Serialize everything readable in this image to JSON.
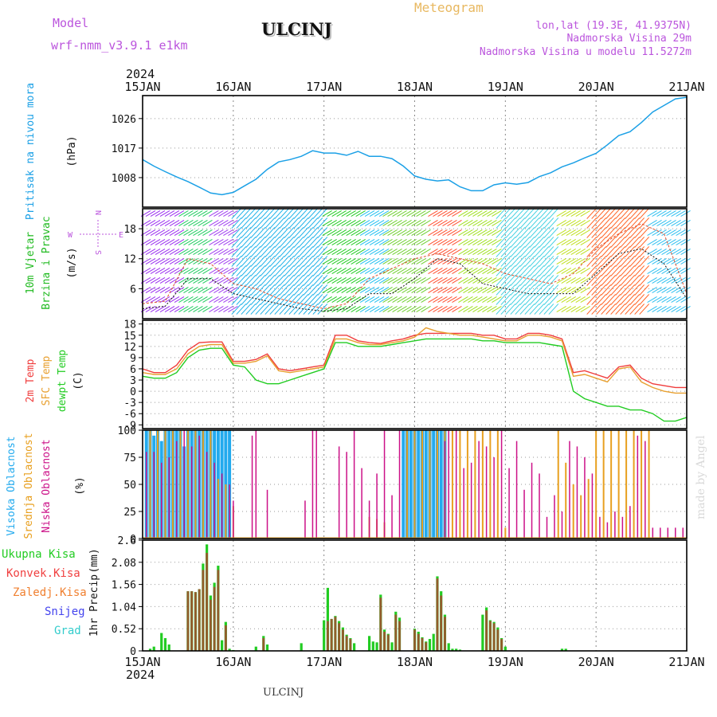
{
  "header": {
    "model_label": "Model",
    "model_name": "wrf-nmm_v3.9.1 e1km",
    "station": "ULCINJ",
    "product": "Meteogram",
    "coords": "lon,lat (19.3E, 41.9375N)",
    "elevation": "Nadmorska Visina 29m",
    "model_elevation": "Nadmorska Visina u modelu 11.5272m",
    "year": "2024",
    "footer_station": "ULCINJ",
    "watermark": "made by Angel"
  },
  "colors": {
    "pressure": "#1ba0e6",
    "wind_label": "#22bb22",
    "temp2m": "#f03c3c",
    "sfc_temp": "#e8a030",
    "dewpt": "#22cc22",
    "high_cloud": "#22aaee",
    "mid_cloud": "#e8a020",
    "low_cloud": "#cc1188",
    "total_precip": "#22cc22",
    "conv_precip": "#f04040",
    "strat_precip": "#f08030",
    "snow": "#4444ee",
    "hail": "#33cccc",
    "model_text": "#bb55dd",
    "product_text": "#e8b860"
  },
  "chart_data": [
    {
      "type": "line",
      "name": "pressure",
      "ylabel_lines": [
        "Pritisak na nivou mora",
        "(hPa)"
      ],
      "yticks": [
        1008,
        1017,
        1026
      ],
      "ylim": [
        999,
        1033
      ],
      "xlim_hours": [
        0,
        144
      ],
      "day_labels": [
        "15JAN",
        "16JAN",
        "17JAN",
        "18JAN",
        "19JAN",
        "20JAN",
        "21JAN"
      ],
      "grid": true,
      "x": [
        0,
        3,
        6,
        9,
        12,
        15,
        18,
        21,
        24,
        27,
        30,
        33,
        36,
        39,
        42,
        45,
        48,
        51,
        54,
        57,
        60,
        63,
        66,
        69,
        72,
        75,
        78,
        81,
        84,
        87,
        90,
        93,
        96,
        99,
        102,
        105,
        108,
        111,
        114,
        117,
        120,
        123,
        126,
        129,
        132,
        135,
        138,
        141,
        144
      ],
      "values": [
        1013.5,
        1011.5,
        1009.8,
        1008.2,
        1006.8,
        1005.1,
        1003.3,
        1002.8,
        1003.5,
        1005.5,
        1007.5,
        1010.5,
        1012.8,
        1013.5,
        1014.5,
        1016.2,
        1015.5,
        1015.5,
        1014.8,
        1016,
        1014.5,
        1014.5,
        1013.8,
        1011.5,
        1008.5,
        1007.5,
        1007,
        1007.3,
        1005.2,
        1004,
        1004,
        1005.8,
        1006.4,
        1006,
        1006.5,
        1008.3,
        1009.5,
        1011.3,
        1012.5,
        1014,
        1015.4,
        1018,
        1020.8,
        1022,
        1024.8,
        1028,
        1030,
        1032,
        1032.5
      ]
    },
    {
      "type": "line",
      "name": "wind_speed",
      "ylabel_lines": [
        "10m Vjetar",
        "Brzina i Pravac",
        "(m/s)"
      ],
      "compass": {
        "north": "N",
        "west": "W",
        "east": "E",
        "south": "S"
      },
      "yticks": [
        6,
        12,
        18
      ],
      "ylim": [
        0,
        22
      ],
      "grid": true,
      "direction_bands": [
        {
          "from_h": 0,
          "to_h": 10,
          "color": "#9a30f0"
        },
        {
          "from_h": 10,
          "to_h": 18,
          "color": "#20cc60"
        },
        {
          "from_h": 18,
          "to_h": 24,
          "color": "#a040f0"
        },
        {
          "from_h": 24,
          "to_h": 48,
          "color": "#1ab0e8"
        },
        {
          "from_h": 48,
          "to_h": 58,
          "color": "#22cc22"
        },
        {
          "from_h": 58,
          "to_h": 64,
          "color": "#22c0f0"
        },
        {
          "from_h": 64,
          "to_h": 76,
          "color": "#70d030"
        },
        {
          "from_h": 76,
          "to_h": 84,
          "color": "#ff5030"
        },
        {
          "from_h": 84,
          "to_h": 94,
          "color": "#a0e020"
        },
        {
          "from_h": 94,
          "to_h": 110,
          "color": "#40d0e0"
        },
        {
          "from_h": 110,
          "to_h": 118,
          "color": "#c0e020"
        },
        {
          "from_h": 118,
          "to_h": 134,
          "color": "#ff6020"
        },
        {
          "from_h": 134,
          "to_h": 144,
          "color": "#30c0f0"
        }
      ],
      "series": [
        {
          "name": "gust",
          "x": [
            0,
            6,
            12,
            18,
            24,
            30,
            36,
            42,
            48,
            54,
            60,
            66,
            72,
            78,
            84,
            90,
            96,
            102,
            108,
            114,
            120,
            126,
            132,
            138,
            144
          ],
          "values": [
            3,
            3.5,
            12,
            11,
            7,
            6,
            4,
            3,
            2,
            3,
            8,
            10,
            12,
            13,
            12,
            11,
            9,
            8,
            7,
            9,
            14,
            17,
            19,
            17,
            5
          ]
        },
        {
          "name": "mean",
          "x": [
            0,
            6,
            12,
            18,
            24,
            30,
            36,
            42,
            48,
            54,
            60,
            66,
            72,
            78,
            84,
            90,
            96,
            102,
            108,
            114,
            120,
            126,
            132,
            138,
            144
          ],
          "values": [
            2,
            2.5,
            8,
            8,
            5,
            4,
            3,
            2,
            1.5,
            2,
            5,
            5,
            8,
            12,
            11,
            7,
            6,
            5,
            5,
            5,
            9,
            13,
            14,
            11,
            4
          ]
        }
      ]
    },
    {
      "type": "line",
      "name": "temperature",
      "ylabel_lines": [
        "2m Temp",
        "SFC Temp",
        "dewpt Temp",
        "(C)"
      ],
      "yticks": [
        -9,
        -6,
        -3,
        0,
        3,
        6,
        9,
        12,
        15,
        18
      ],
      "ylim": [
        -10,
        19
      ],
      "grid": true,
      "x": [
        0,
        3,
        6,
        9,
        12,
        15,
        18,
        21,
        24,
        27,
        30,
        33,
        36,
        39,
        42,
        45,
        48,
        51,
        54,
        57,
        60,
        63,
        66,
        69,
        72,
        75,
        78,
        81,
        84,
        87,
        90,
        93,
        96,
        99,
        102,
        105,
        108,
        111,
        114,
        117,
        120,
        123,
        126,
        129,
        132,
        135,
        138,
        141,
        144
      ],
      "series": [
        {
          "name": "2m Temp",
          "values": [
            6,
            5,
            5,
            7,
            11,
            13,
            13.2,
            13.2,
            8,
            8,
            8.5,
            10,
            6,
            5.5,
            6,
            6.5,
            7,
            15,
            15,
            13.5,
            13,
            12.8,
            13.5,
            14,
            15,
            15.5,
            15.5,
            15.5,
            15.5,
            15.5,
            15,
            15,
            14,
            14,
            15.5,
            15.5,
            15,
            14,
            5,
            5.5,
            4.5,
            3.5,
            6.5,
            7,
            3.5,
            2,
            1.5,
            1,
            1
          ]
        },
        {
          "name": "SFC Temp",
          "values": [
            5,
            4.5,
            4.5,
            6,
            10,
            12,
            12.5,
            12.5,
            7.5,
            7.5,
            8,
            9.5,
            5.5,
            5,
            5.5,
            6,
            6.5,
            14,
            14,
            13,
            12.5,
            12.5,
            13,
            13.5,
            14.5,
            17,
            16,
            15.5,
            15,
            15,
            14.5,
            14,
            13.5,
            13.5,
            15,
            15,
            14.5,
            13.5,
            4,
            4.5,
            3.5,
            2.5,
            6,
            6.5,
            2.5,
            1,
            0,
            -0.5,
            -0.5
          ]
        },
        {
          "name": "dewpt Temp",
          "values": [
            4,
            3.5,
            3.5,
            5,
            9,
            11,
            11.5,
            11.5,
            7,
            6.5,
            3,
            2,
            2,
            3,
            4,
            5,
            6,
            13,
            13,
            12,
            12,
            12,
            12.5,
            13,
            13.5,
            14,
            14,
            14,
            14,
            14,
            13.5,
            13.5,
            13,
            13,
            13,
            13,
            12.5,
            12,
            0,
            -2,
            -3,
            -4,
            -4,
            -5,
            -5,
            -6,
            -8,
            -8,
            -7
          ]
        }
      ]
    },
    {
      "type": "bar",
      "name": "cloud_cover",
      "ylabel_lines": [
        "Visoka Oblacnost",
        "Srednja Oblacnost",
        "Niska Oblacnost",
        "(%)"
      ],
      "yticks": [
        0,
        25,
        50,
        75,
        100
      ],
      "ylim": [
        0,
        100
      ],
      "grid": true,
      "series": [
        {
          "name": "Visoka Oblacnost",
          "x": [
            1,
            2,
            3,
            4,
            5,
            6,
            7,
            8,
            9,
            10,
            11,
            12,
            13,
            14,
            15,
            16,
            17,
            18,
            19,
            20,
            21,
            22,
            23,
            69,
            70,
            71,
            72,
            73,
            74,
            75,
            76,
            77,
            78,
            79,
            80
          ],
          "values": [
            100,
            100,
            95,
            100,
            90,
            100,
            100,
            100,
            100,
            100,
            85,
            100,
            100,
            100,
            100,
            100,
            100,
            100,
            100,
            100,
            100,
            100,
            100,
            100,
            100,
            100,
            100,
            100,
            100,
            100,
            100,
            100,
            100,
            100,
            100
          ]
        },
        {
          "name": "Srednja Oblacnost",
          "x": [
            2,
            4,
            6,
            8,
            10,
            12,
            14,
            16,
            18,
            20,
            22,
            24,
            60,
            62,
            64,
            70,
            72,
            74,
            76,
            78,
            80,
            82,
            84,
            86,
            88,
            90,
            92,
            94,
            96,
            110,
            112,
            114,
            116,
            118,
            120,
            122,
            124,
            126,
            128,
            130,
            132,
            134
          ],
          "values": [
            100,
            100,
            100,
            100,
            100,
            100,
            100,
            100,
            100,
            55,
            50,
            30,
            20,
            18,
            15,
            100,
            100,
            100,
            100,
            100,
            100,
            100,
            100,
            100,
            100,
            100,
            100,
            100,
            10,
            100,
            70,
            50,
            40,
            55,
            100,
            100,
            100,
            100,
            100,
            100,
            100,
            100
          ]
        },
        {
          "name": "Niska Oblacnost",
          "x": [
            1,
            3,
            5,
            7,
            9,
            11,
            13,
            15,
            17,
            19,
            21,
            23,
            24,
            29,
            30,
            33,
            43,
            45,
            46,
            52,
            54,
            56,
            58,
            60,
            62,
            64,
            66,
            68,
            80,
            81,
            83,
            85,
            87,
            89,
            91,
            93,
            95,
            97,
            99,
            101,
            103,
            105,
            107,
            109,
            111,
            113,
            115,
            117,
            119,
            121,
            123,
            125,
            127,
            129,
            131,
            133,
            135,
            137,
            139,
            141,
            143
          ],
          "values": [
            80,
            80,
            70,
            75,
            90,
            100,
            85,
            95,
            80,
            70,
            60,
            50,
            35,
            95,
            100,
            45,
            35,
            100,
            100,
            85,
            80,
            100,
            65,
            35,
            60,
            100,
            40,
            100,
            90,
            100,
            100,
            65,
            70,
            90,
            85,
            75,
            100,
            65,
            90,
            45,
            70,
            60,
            20,
            40,
            25,
            90,
            85,
            75,
            60,
            20,
            15,
            25,
            20,
            30,
            95,
            90,
            10,
            10,
            10,
            10,
            10
          ]
        }
      ]
    },
    {
      "type": "bar",
      "name": "precipitation",
      "ylabel_lines": [
        "1hr Precip",
        "(mm)"
      ],
      "legend": [
        "Ukupna Kisa",
        "Konvek.Kisa",
        "Zaledj.Kisa",
        "Snijeg",
        "Grad"
      ],
      "yticks": [
        0,
        0.52,
        1.04,
        1.56,
        2.08,
        2.6
      ],
      "ylim": [
        0,
        2.6
      ],
      "grid": true,
      "series": [
        {
          "name": "Ukupna Kisa",
          "x": [
            2,
            3,
            5,
            6,
            7,
            12,
            13,
            14,
            15,
            16,
            17,
            18,
            19,
            20,
            21,
            22,
            23,
            24,
            30,
            32,
            33,
            42,
            48,
            49,
            50,
            51,
            52,
            53,
            54,
            55,
            56,
            60,
            61,
            62,
            63,
            64,
            65,
            66,
            67,
            68,
            72,
            73,
            74,
            75,
            76,
            77,
            78,
            79,
            80,
            81,
            82,
            83,
            84,
            90,
            91,
            92,
            93,
            94,
            95,
            96,
            111,
            112
          ],
          "values": [
            0.05,
            0.1,
            0.42,
            0.3,
            0.15,
            1.4,
            1.4,
            1.38,
            1.45,
            2.05,
            2.5,
            1.3,
            1.6,
            2.0,
            0.25,
            0.68,
            0.05,
            0.02,
            0.1,
            0.35,
            0.15,
            0.18,
            0.72,
            1.48,
            0.75,
            0.82,
            0.7,
            0.55,
            0.38,
            0.3,
            0.18,
            0.35,
            0.22,
            0.2,
            1.32,
            0.5,
            0.4,
            0.2,
            0.92,
            0.78,
            0.52,
            0.45,
            0.32,
            0.22,
            0.28,
            0.4,
            1.75,
            1.4,
            0.85,
            0.18,
            0.05,
            0.05,
            0.03,
            0.85,
            1.02,
            0.72,
            0.68,
            0.55,
            0.3,
            0.1,
            0.05,
            0.05
          ]
        },
        {
          "name": "Konvek.Kisa",
          "x": [
            12,
            13,
            14,
            15,
            16,
            17,
            18,
            19,
            20,
            22,
            32,
            49,
            50,
            51,
            52,
            53,
            54,
            55,
            63,
            64,
            65,
            67,
            68,
            72,
            73,
            74,
            75,
            78,
            79,
            80,
            91,
            92,
            93,
            94,
            95
          ],
          "values": [
            1.4,
            1.4,
            1.38,
            1.45,
            1.9,
            2.3,
            1.2,
            1.5,
            1.9,
            0.6,
            0.3,
            0.7,
            0.75,
            0.8,
            0.65,
            0.5,
            0.35,
            0.28,
            1.25,
            0.45,
            0.38,
            0.85,
            0.7,
            0.5,
            0.4,
            0.3,
            0.2,
            1.7,
            1.3,
            0.8,
            0.95,
            0.7,
            0.65,
            0.5,
            0.28
          ]
        }
      ]
    }
  ]
}
